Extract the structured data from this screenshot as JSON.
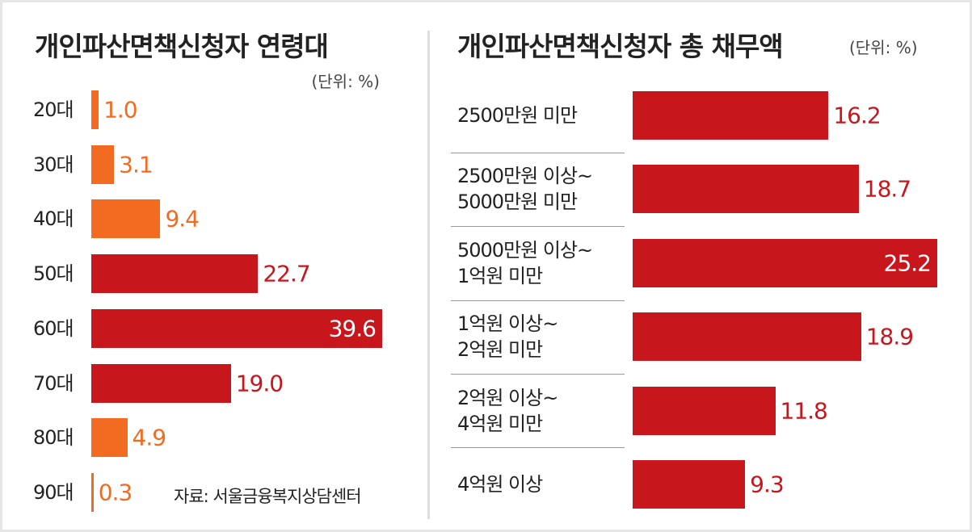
{
  "chart_data": [
    {
      "type": "bar",
      "orientation": "horizontal",
      "title": "개인파산면책신청자 연령대",
      "subtitle": "(단위: %)",
      "categories": [
        "20대",
        "30대",
        "40대",
        "50대",
        "60대",
        "70대",
        "80대",
        "90대"
      ],
      "values": [
        1.0,
        3.1,
        9.4,
        22.7,
        39.6,
        19.0,
        4.9,
        0.3
      ],
      "value_labels": [
        "1.0",
        "3.1",
        "9.4",
        "22.7",
        "39.6",
        "19.0",
        "4.9",
        "0.3"
      ],
      "colors": [
        "#f26b21",
        "#f26b21",
        "#f26b21",
        "#c8161d",
        "#c8161d",
        "#c8161d",
        "#f26b21",
        "#f26b21"
      ]
    },
    {
      "type": "bar",
      "orientation": "horizontal",
      "title": "개인파산면책신청자 총 채무액",
      "subtitle": "(단위: %)",
      "categories": [
        "2500만원 미만",
        "2500만원 이상~\n5000만원 미만",
        "5000만원 이상~\n1억원 미만",
        "1억원 이상~\n2억원 미만",
        "2억원 이상~\n4억원 미만",
        "4억원 이상"
      ],
      "values": [
        16.2,
        18.7,
        25.2,
        18.9,
        11.8,
        9.3
      ],
      "color": "#c8161d"
    }
  ],
  "source": "자료: 서울금융복지상담센터"
}
